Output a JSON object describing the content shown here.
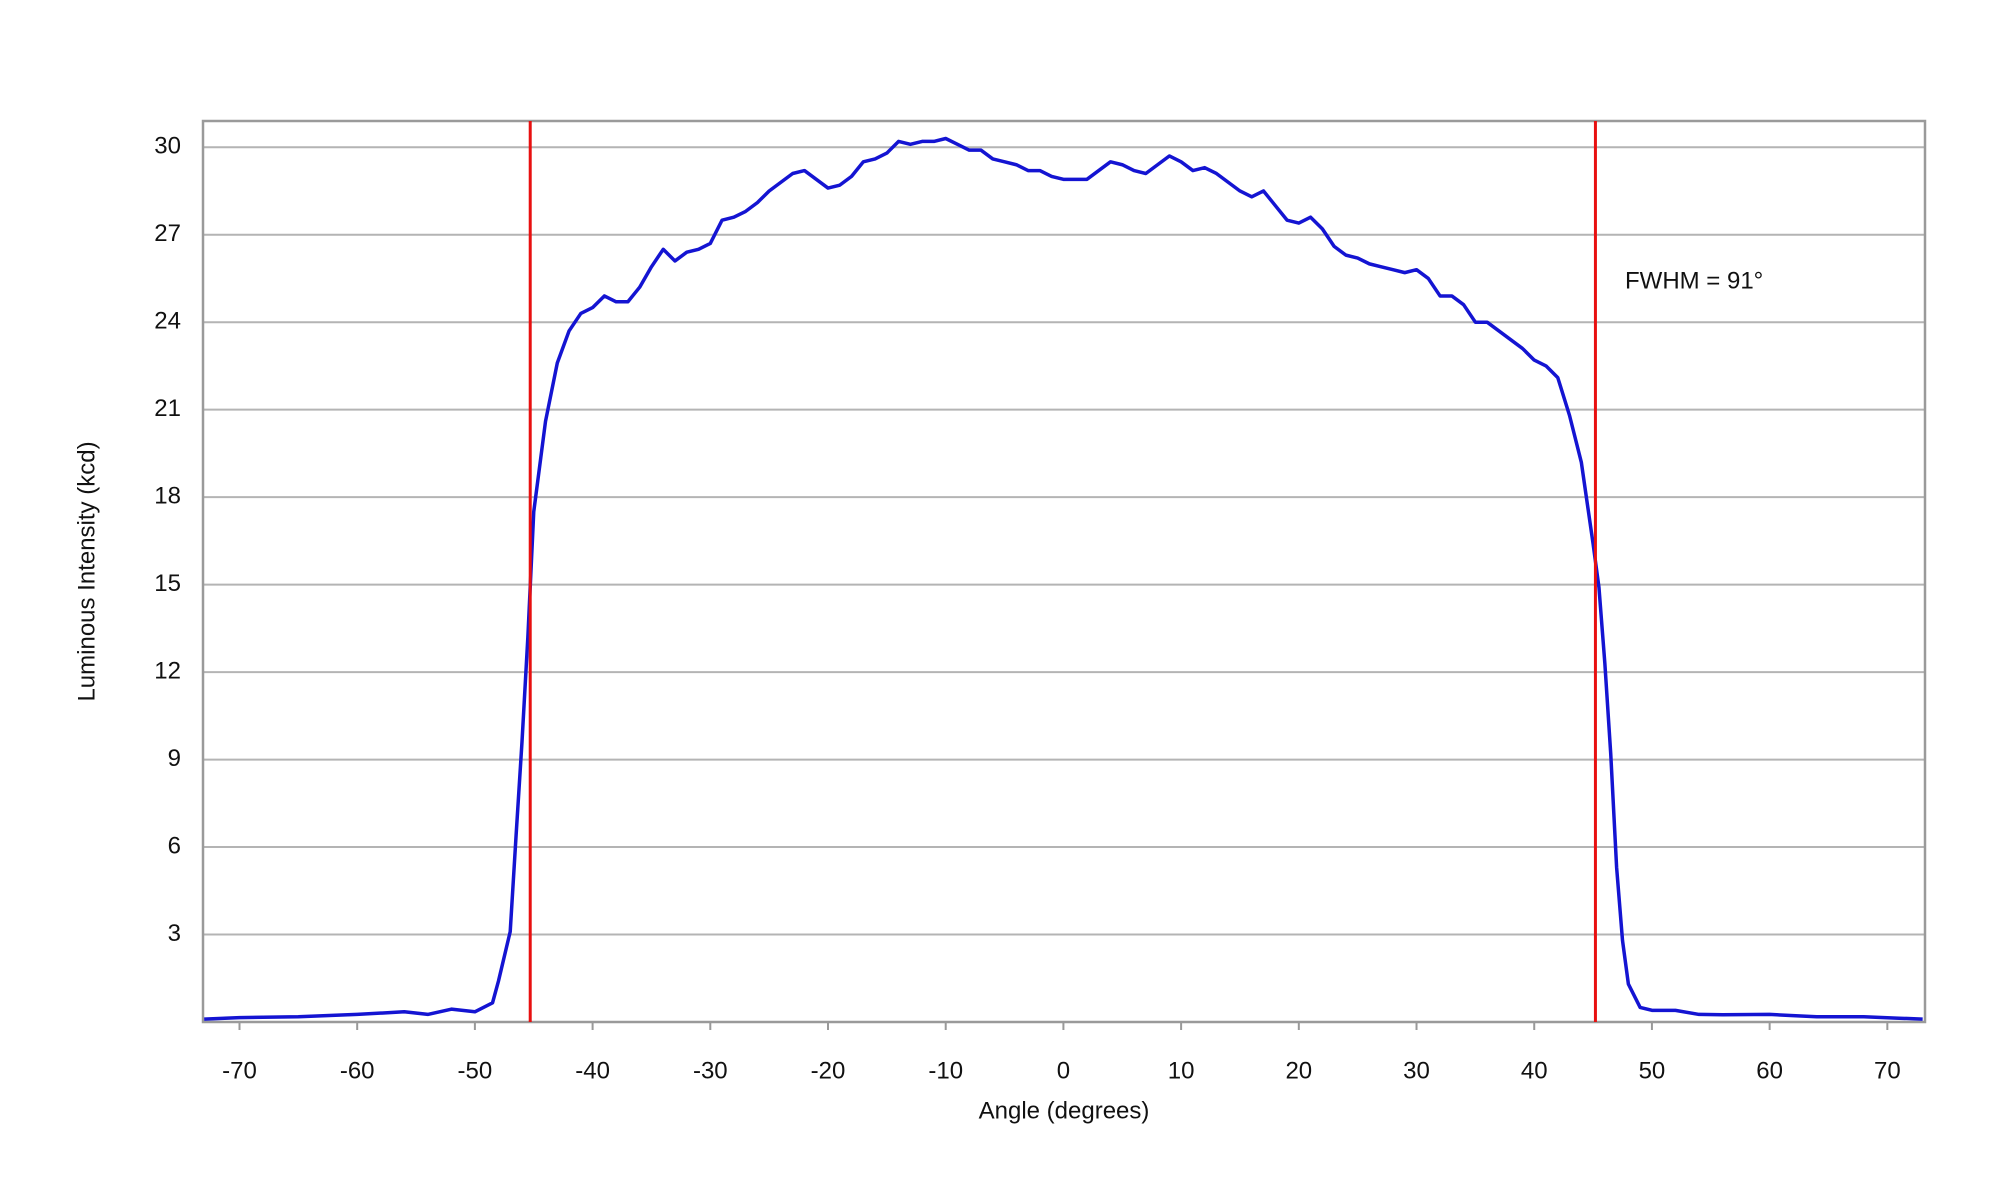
{
  "chart_data": {
    "type": "line",
    "xlabel": "Angle (degrees)",
    "ylabel": "Luminous Intensity (kcd)",
    "annotation": "FWHM = 91°",
    "x": [
      -73,
      -70,
      -65,
      -60,
      -56,
      -54,
      -52,
      -50,
      -48.5,
      -48,
      -47,
      -46.5,
      -46,
      -45.5,
      -45,
      -44,
      -43,
      -42,
      -41,
      -40,
      -39,
      -38,
      -37,
      -36,
      -35,
      -34,
      -33,
      -32,
      -31,
      -30,
      -29,
      -28,
      -27,
      -26,
      -25,
      -24,
      -23,
      -22,
      -21,
      -20,
      -19,
      -18,
      -17,
      -16,
      -15,
      -14,
      -13,
      -12,
      -11,
      -10,
      -9,
      -8,
      -7,
      -6,
      -5,
      -4,
      -3,
      -2,
      -1,
      0,
      1,
      2,
      3,
      4,
      5,
      6,
      7,
      8,
      9,
      10,
      11,
      12,
      13,
      14,
      15,
      16,
      17,
      18,
      19,
      20,
      21,
      22,
      23,
      24,
      25,
      26,
      27,
      28,
      29,
      30,
      31,
      32,
      33,
      34,
      35,
      36,
      37,
      38,
      39,
      40,
      41,
      42,
      43,
      44,
      45,
      45.5,
      46,
      46.5,
      47,
      47.5,
      48,
      49,
      50,
      52,
      54,
      56,
      60,
      62,
      64,
      68,
      71,
      73
    ],
    "values": [
      0.1,
      0.15,
      0.18,
      0.26,
      0.35,
      0.26,
      0.44,
      0.35,
      0.66,
      1.4,
      3.1,
      6.4,
      9.6,
      13.2,
      17.5,
      20.6,
      22.6,
      23.7,
      24.3,
      24.5,
      24.9,
      24.7,
      24.7,
      25.2,
      25.9,
      26.5,
      26.1,
      26.4,
      26.5,
      26.7,
      27.5,
      27.6,
      27.8,
      28.1,
      28.5,
      28.8,
      29.1,
      29.2,
      28.9,
      28.6,
      28.7,
      29.0,
      29.5,
      29.6,
      29.8,
      30.2,
      30.1,
      30.2,
      30.2,
      30.3,
      30.1,
      29.9,
      29.9,
      29.6,
      29.5,
      29.4,
      29.2,
      29.2,
      29.0,
      28.9,
      28.9,
      28.9,
      29.2,
      29.5,
      29.4,
      29.2,
      29.1,
      29.4,
      29.7,
      29.5,
      29.2,
      29.3,
      29.1,
      28.8,
      28.5,
      28.3,
      28.5,
      28.0,
      27.5,
      27.4,
      27.6,
      27.2,
      26.6,
      26.3,
      26.2,
      26.0,
      25.9,
      25.8,
      25.7,
      25.8,
      25.5,
      24.9,
      24.9,
      24.6,
      24.0,
      24.0,
      23.7,
      23.4,
      23.1,
      22.7,
      22.5,
      22.1,
      20.8,
      19.2,
      16.4,
      14.9,
      12.3,
      9.2,
      5.3,
      2.8,
      1.3,
      0.5,
      0.4,
      0.4,
      0.26,
      0.25,
      0.26,
      0.22,
      0.18,
      0.18,
      0.13,
      0.1
    ],
    "color": "#1414d2",
    "vlines": [
      -45.3,
      45.2
    ],
    "vline_color": "#e81010",
    "xlim": [
      -73.1,
      73.2
    ],
    "ylim": [
      0,
      30.9
    ],
    "xticks": [
      -70,
      -60,
      -50,
      -40,
      -30,
      -20,
      -10,
      0,
      10,
      20,
      30,
      40,
      50,
      60,
      70
    ],
    "yticks": [
      3,
      6,
      9,
      12,
      15,
      18,
      21,
      24,
      27,
      30
    ],
    "grid": true
  }
}
